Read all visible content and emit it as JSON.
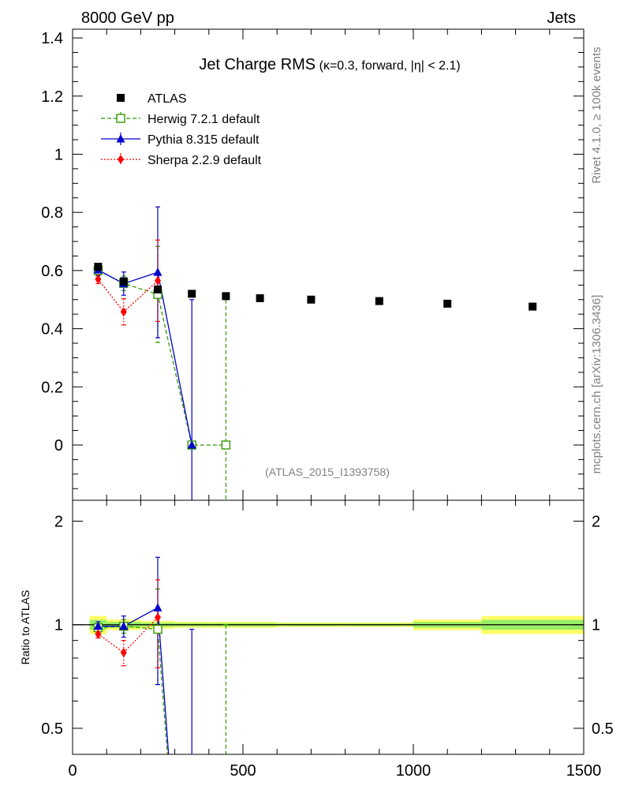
{
  "header": {
    "left": "8000 GeV pp",
    "right": "Jets"
  },
  "side_labels": {
    "rivet": "Rivet 4.1.0, ≥ 100k events",
    "mcplots": "mcplots.cern.ch [arXiv:1306.3436]"
  },
  "chart_data": {
    "type": "scatter",
    "title_main": "Jet Charge RMS",
    "title_sub": "(κ=0.3, forward, |η| < 2.1)",
    "watermark": "(ATLAS_2015_I1393758)",
    "ratio_ylabel": "Ratio to ATLAS",
    "xlim": [
      0,
      1500
    ],
    "ylim_main": [
      -0.19,
      1.43
    ],
    "ylim_ratio": [
      0.42,
      2.3
    ],
    "x_ticks": [
      0,
      500,
      1000,
      1500
    ],
    "x_tick_labels": [
      "0",
      "500",
      "1000",
      "1500"
    ],
    "y_ticks_main": [
      0,
      0.2,
      0.4,
      0.6,
      0.8,
      1,
      1.2,
      1.4
    ],
    "y_tick_labels_main": [
      "0",
      "0.2",
      "0.4",
      "0.6",
      "0.8",
      "1",
      "1.2",
      "1.4"
    ],
    "y_ticks_ratio": [
      0.5,
      1,
      2
    ],
    "y_tick_labels_ratio": [
      "0.5",
      "1",
      "2"
    ],
    "bins": [
      [
        50,
        100
      ],
      [
        100,
        200
      ],
      [
        200,
        300
      ],
      [
        300,
        400
      ],
      [
        400,
        500
      ],
      [
        500,
        600
      ],
      [
        600,
        800
      ],
      [
        800,
        1000
      ],
      [
        1000,
        1200
      ],
      [
        1200,
        1500
      ]
    ],
    "series": [
      {
        "name": "ATLAS",
        "color": "#000000",
        "marker": "square",
        "x": [
          75,
          150,
          250,
          350,
          450,
          550,
          700,
          900,
          1100,
          1350
        ],
        "y": [
          0.613,
          0.563,
          0.535,
          0.52,
          0.512,
          0.505,
          0.5,
          0.495,
          0.486,
          0.476
        ],
        "err": [
          0.01,
          0.01,
          0.01,
          0.005,
          0.005,
          0.005,
          0.005,
          0.005,
          0.005,
          0.008
        ],
        "ratio_band": [
          0.06,
          0.035,
          0.025,
          0.02,
          0.02,
          0.02,
          0.015,
          0.015,
          0.035,
          0.06
        ]
      },
      {
        "name": "Herwig 7.2.1 default",
        "color": "#339900",
        "marker": "open-square",
        "dash": "5,3",
        "x": [
          75,
          150,
          250,
          350,
          450
        ],
        "y": [
          0.6,
          0.556,
          0.518,
          0.0,
          0.0
        ],
        "err": [
          0.015,
          0.025,
          0.165,
          0.0,
          0.5
        ],
        "ratio": [
          0.98,
          0.99,
          0.97,
          0.0,
          0.0
        ],
        "ratio_err": [
          0.025,
          0.045,
          0.3,
          0.0,
          1.0
        ]
      },
      {
        "name": "Pythia 8.315 default",
        "color": "#0000cc",
        "marker": "triangle",
        "dash": "",
        "x": [
          75,
          150,
          250,
          350
        ],
        "y": [
          0.602,
          0.555,
          0.594,
          0.0
        ],
        "err": [
          0.02,
          0.04,
          0.225,
          0.5
        ],
        "ratio": [
          0.99,
          0.99,
          1.12,
          0.0
        ],
        "ratio_err": [
          0.03,
          0.07,
          0.45,
          0.97
        ]
      },
      {
        "name": "Sherpa 2.2.9 default",
        "color": "#ff0000",
        "marker": "diamond",
        "dash": "2,2",
        "x": [
          75,
          150,
          250
        ],
        "y": [
          0.57,
          0.458,
          0.565
        ],
        "err": [
          0.015,
          0.045,
          0.14
        ],
        "ratio": [
          0.94,
          0.83,
          1.05
        ],
        "ratio_err": [
          0.025,
          0.07,
          0.3
        ]
      }
    ]
  }
}
